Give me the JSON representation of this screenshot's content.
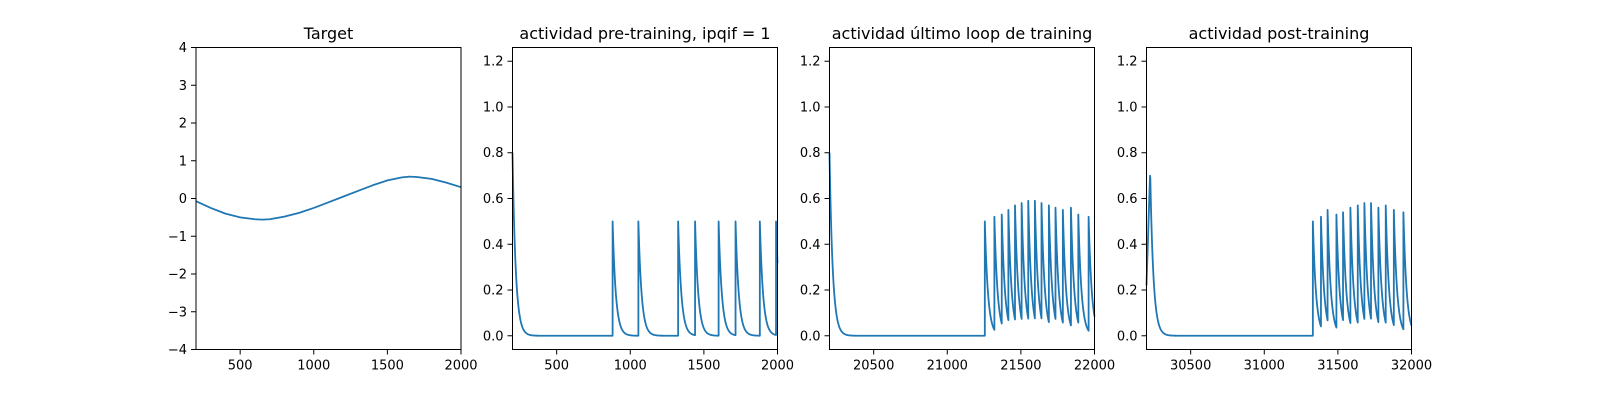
{
  "chart_data": [
    {
      "type": "line",
      "title": "Target",
      "xlim": [
        200,
        2000
      ],
      "ylim": [
        -4,
        4
      ],
      "xticks": [
        500,
        1000,
        1500,
        2000
      ],
      "yticks": [
        -4,
        -3,
        -2,
        -1,
        0,
        1,
        2,
        3,
        4
      ],
      "xlabel": "",
      "ylabel": "",
      "grid": false,
      "series_color": "#1f77b4",
      "series": [
        {
          "x": [
            200,
            300,
            400,
            500,
            600,
            650,
            700,
            800,
            900,
            1000,
            1100,
            1200,
            1300,
            1400,
            1500,
            1600,
            1650,
            1700,
            1800,
            1900,
            2000
          ],
          "y": [
            -0.07,
            -0.25,
            -0.4,
            -0.5,
            -0.55,
            -0.56,
            -0.55,
            -0.48,
            -0.38,
            -0.25,
            -0.1,
            0.05,
            0.2,
            0.35,
            0.48,
            0.56,
            0.58,
            0.57,
            0.52,
            0.42,
            0.3
          ]
        }
      ]
    },
    {
      "type": "line",
      "title": "actividad pre-training, ipqif = 1",
      "xlim": [
        200,
        2000
      ],
      "ylim": [
        -0.06,
        1.26
      ],
      "xticks": [
        500,
        1000,
        1500,
        2000
      ],
      "yticks": [
        0.0,
        0.2,
        0.4,
        0.6,
        0.8,
        1.0,
        1.2
      ],
      "xlabel": "",
      "ylabel": "",
      "grid": false,
      "series_color": "#1f77b4",
      "start": {
        "x": 200,
        "y": 0.8
      },
      "spike_tau": 22,
      "spikes": [
        {
          "t": 880,
          "h": 0.5
        },
        {
          "t": 1055,
          "h": 0.5
        },
        {
          "t": 1325,
          "h": 0.5
        },
        {
          "t": 1440,
          "h": 0.5
        },
        {
          "t": 1600,
          "h": 0.5
        },
        {
          "t": 1715,
          "h": 0.5
        },
        {
          "t": 1880,
          "h": 0.5
        },
        {
          "t": 1990,
          "h": 0.5
        }
      ]
    },
    {
      "type": "line",
      "title": "actividad último loop de training",
      "xlim": [
        20200,
        22000
      ],
      "ylim": [
        -0.06,
        1.26
      ],
      "xticks": [
        20500,
        21000,
        21500,
        22000
      ],
      "yticks": [
        0.0,
        0.2,
        0.4,
        0.6,
        0.8,
        1.0,
        1.2
      ],
      "xlabel": "",
      "ylabel": "",
      "grid": false,
      "series_color": "#1f77b4",
      "start": {
        "x": 20200,
        "y": 0.8
      },
      "spike_tau": 22,
      "spikes": [
        {
          "t": 21255,
          "h": 0.5
        },
        {
          "t": 21320,
          "h": 0.52
        },
        {
          "t": 21370,
          "h": 0.53
        },
        {
          "t": 21415,
          "h": 0.55
        },
        {
          "t": 21460,
          "h": 0.57
        },
        {
          "t": 21505,
          "h": 0.58
        },
        {
          "t": 21550,
          "h": 0.59
        },
        {
          "t": 21595,
          "h": 0.59
        },
        {
          "t": 21640,
          "h": 0.58
        },
        {
          "t": 21690,
          "h": 0.57
        },
        {
          "t": 21735,
          "h": 0.56
        },
        {
          "t": 21785,
          "h": 0.55
        },
        {
          "t": 21840,
          "h": 0.56
        },
        {
          "t": 21890,
          "h": 0.53
        },
        {
          "t": 21960,
          "h": 0.52
        }
      ]
    },
    {
      "type": "line",
      "title": "actividad post-training",
      "xlim": [
        30200,
        32000
      ],
      "ylim": [
        -0.06,
        1.26
      ],
      "xticks": [
        30500,
        31000,
        31500,
        32000
      ],
      "yticks": [
        0.0,
        0.2,
        0.4,
        0.6,
        0.8,
        1.0,
        1.2
      ],
      "xlabel": "",
      "ylabel": "",
      "grid": false,
      "series_color": "#1f77b4",
      "start": {
        "x": 30200,
        "y": 0.22
      },
      "initial_peak": {
        "x": 30225,
        "y": 0.72
      },
      "spike_tau": 22,
      "spikes": [
        {
          "t": 31330,
          "h": 0.5
        },
        {
          "t": 31385,
          "h": 0.52
        },
        {
          "t": 31430,
          "h": 0.55
        },
        {
          "t": 31490,
          "h": 0.53
        },
        {
          "t": 31535,
          "h": 0.54
        },
        {
          "t": 31585,
          "h": 0.56
        },
        {
          "t": 31635,
          "h": 0.57
        },
        {
          "t": 31680,
          "h": 0.58
        },
        {
          "t": 31725,
          "h": 0.58
        },
        {
          "t": 31775,
          "h": 0.56
        },
        {
          "t": 31825,
          "h": 0.57
        },
        {
          "t": 31880,
          "h": 0.55
        },
        {
          "t": 31945,
          "h": 0.54
        }
      ]
    }
  ]
}
